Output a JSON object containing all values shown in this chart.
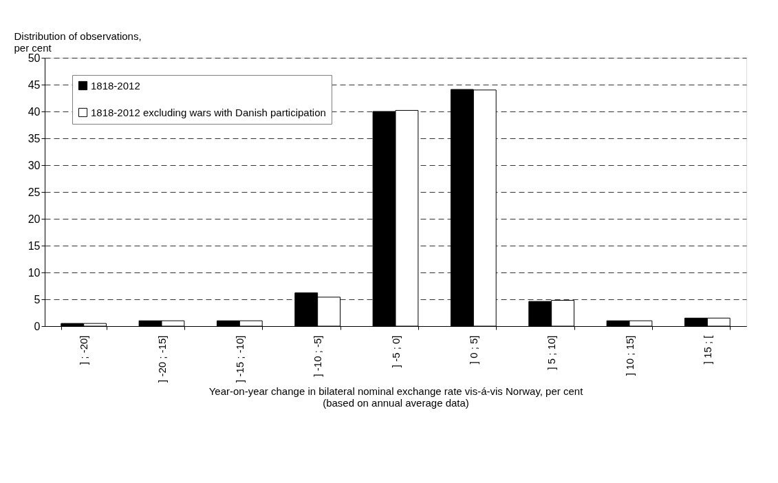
{
  "chart_data": {
    "type": "bar",
    "ylabel": "Distribution of observations,\nper cent",
    "xlabel": "Year-on-year change in bilateral nominal exchange rate vis-á-vis Norway, per cent\n(based on annual average data)",
    "categories": [
      "]     ; -20]",
      "] -20 ; -15]",
      "] -15 ; -10]",
      "] -10 ;  -5]",
      "]  -5 ;   0]",
      "]   0 ;   5]",
      "]   5 ;  10]",
      "] 10 ; 15]",
      "] 15 ;     ["
    ],
    "series": [
      {
        "name": "1818-2012",
        "color": "#000000",
        "values": [
          0.5,
          1,
          1,
          6.2,
          40,
          44.1,
          4.6,
          1,
          1.5
        ]
      },
      {
        "name": "1818-2012 excluding wars with Danish participation",
        "color": "#ffffff",
        "values": [
          0.5,
          1,
          1,
          5.4,
          40.2,
          44,
          4.8,
          1,
          1.5
        ]
      }
    ],
    "ylim": [
      0,
      50
    ],
    "yticks": [
      0,
      5,
      10,
      15,
      20,
      25,
      30,
      35,
      40,
      45,
      50
    ],
    "grid": "y",
    "legend": "top left"
  }
}
